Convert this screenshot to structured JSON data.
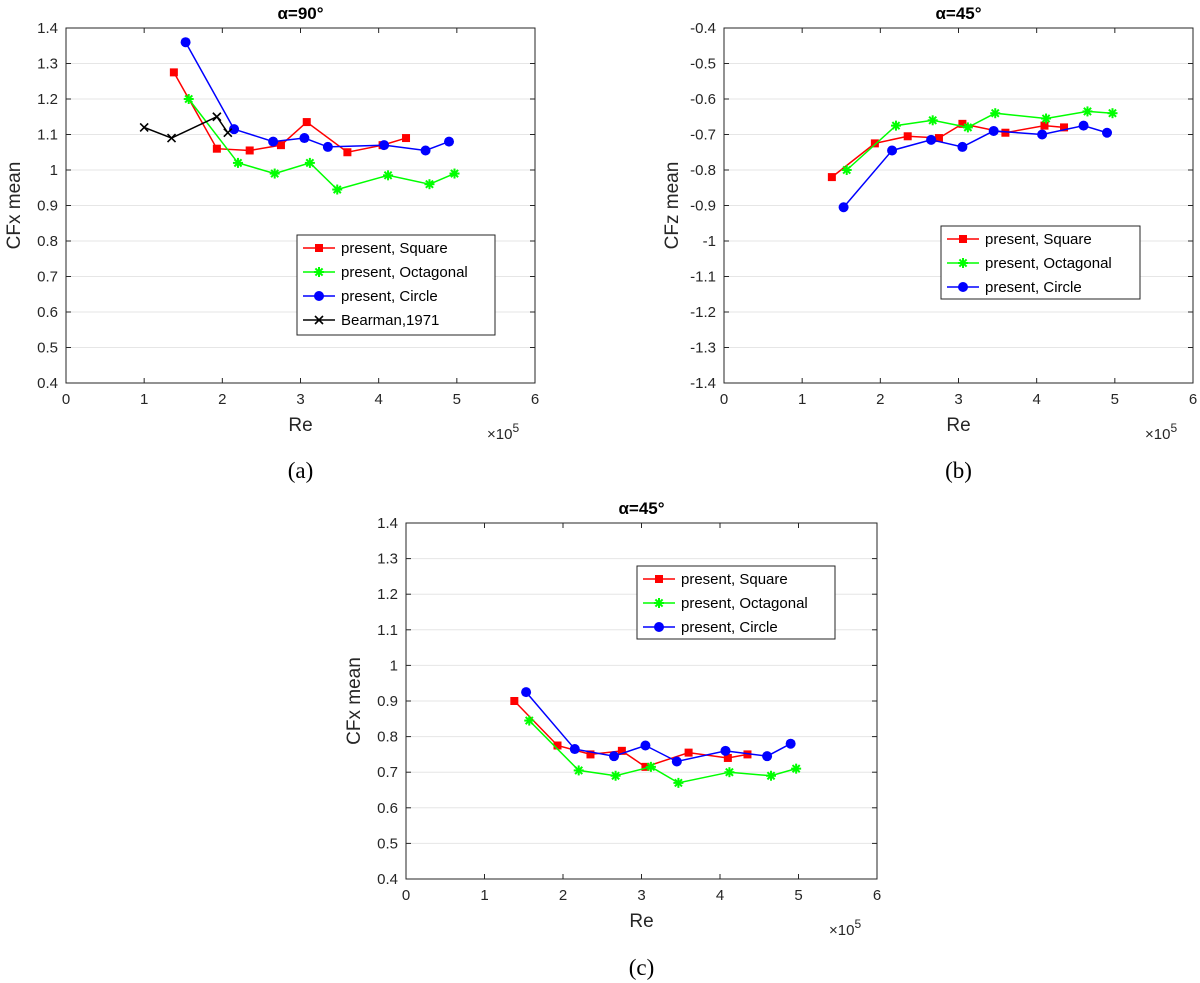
{
  "chart_data": [
    {
      "type": "line",
      "id": "a",
      "title": "α=90°",
      "xlabel": "Re",
      "ylabel": "CFx mean",
      "x_multiplier": "×10",
      "x_multiplier_exp": "5",
      "caption": "(a)",
      "xlim": [
        0,
        6
      ],
      "ylim": [
        0.4,
        1.4
      ],
      "xticks": [
        "0",
        "1",
        "2",
        "3",
        "4",
        "5",
        "6"
      ],
      "yticks": [
        "0.4",
        "0.5",
        "0.6",
        "0.7",
        "0.8",
        "0.9",
        "1",
        "1.1",
        "1.2",
        "1.3",
        "1.4"
      ],
      "grid": "horizontal",
      "legend_position": "lower-right",
      "series": [
        {
          "name": "present, Square",
          "color": "#ff0000",
          "marker": "square",
          "x": [
            1.38,
            1.93,
            2.35,
            2.75,
            3.08,
            3.6,
            4.05,
            4.35
          ],
          "y": [
            1.275,
            1.06,
            1.055,
            1.07,
            1.135,
            1.05,
            1.07,
            1.09
          ]
        },
        {
          "name": "present, Octagonal",
          "color": "#00ff00",
          "marker": "asterisk",
          "x": [
            1.57,
            2.2,
            2.67,
            3.12,
            3.47,
            4.12,
            4.65,
            4.97
          ],
          "y": [
            1.2,
            1.02,
            0.99,
            1.02,
            0.945,
            0.985,
            0.96,
            0.99
          ]
        },
        {
          "name": "present, Circle",
          "color": "#0000ff",
          "marker": "circle",
          "x": [
            1.53,
            2.15,
            2.65,
            3.05,
            3.35,
            4.07,
            4.6,
            4.9
          ],
          "y": [
            1.36,
            1.115,
            1.08,
            1.09,
            1.065,
            1.07,
            1.055,
            1.08
          ]
        },
        {
          "name": "Bearman,1971",
          "color": "#000000",
          "marker": "x",
          "x": [
            1.0,
            1.35,
            1.93,
            2.07
          ],
          "y": [
            1.12,
            1.09,
            1.15,
            1.105
          ]
        }
      ]
    },
    {
      "type": "line",
      "id": "b",
      "title": "α=45°",
      "xlabel": "Re",
      "ylabel": "CFz mean",
      "x_multiplier": "×10",
      "x_multiplier_exp": "5",
      "caption": "(b)",
      "xlim": [
        0,
        6
      ],
      "ylim": [
        -1.4,
        -0.4
      ],
      "xticks": [
        "0",
        "1",
        "2",
        "3",
        "4",
        "5",
        "6"
      ],
      "yticks": [
        "-1.4",
        "-1.3",
        "-1.2",
        "-1.1",
        "-1",
        "-0.9",
        "-0.8",
        "-0.7",
        "-0.6",
        "-0.5",
        "-0.4"
      ],
      "grid": "horizontal",
      "legend_position": "center-right",
      "series": [
        {
          "name": "present, Square",
          "color": "#ff0000",
          "marker": "square",
          "x": [
            1.38,
            1.93,
            2.35,
            2.75,
            3.05,
            3.6,
            4.1,
            4.35
          ],
          "y": [
            -0.82,
            -0.725,
            -0.705,
            -0.71,
            -0.67,
            -0.695,
            -0.675,
            -0.68
          ]
        },
        {
          "name": "present, Octagonal",
          "color": "#00ff00",
          "marker": "asterisk",
          "x": [
            1.57,
            2.2,
            2.67,
            3.12,
            3.47,
            4.12,
            4.65,
            4.97
          ],
          "y": [
            -0.8,
            -0.675,
            -0.66,
            -0.68,
            -0.64,
            -0.655,
            -0.635,
            -0.64
          ]
        },
        {
          "name": "present, Circle",
          "color": "#0000ff",
          "marker": "circle",
          "x": [
            1.53,
            2.15,
            2.65,
            3.05,
            3.45,
            4.07,
            4.6,
            4.9
          ],
          "y": [
            -0.905,
            -0.745,
            -0.715,
            -0.735,
            -0.69,
            -0.7,
            -0.675,
            -0.695
          ]
        }
      ]
    },
    {
      "type": "line",
      "id": "c",
      "title": "α=45°",
      "xlabel": "Re",
      "ylabel": "CFx mean",
      "x_multiplier": "×10",
      "x_multiplier_exp": "5",
      "caption": "(c)",
      "xlim": [
        0,
        6
      ],
      "ylim": [
        0.4,
        1.4
      ],
      "xticks": [
        "0",
        "1",
        "2",
        "3",
        "4",
        "5",
        "6"
      ],
      "yticks": [
        "0.4",
        "0.5",
        "0.6",
        "0.7",
        "0.8",
        "0.9",
        "1",
        "1.1",
        "1.2",
        "1.3",
        "1.4"
      ],
      "grid": "horizontal",
      "legend_position": "top-right",
      "series": [
        {
          "name": "present, Square",
          "color": "#ff0000",
          "marker": "square",
          "x": [
            1.38,
            1.93,
            2.35,
            2.75,
            3.05,
            3.6,
            4.1,
            4.35
          ],
          "y": [
            0.9,
            0.775,
            0.75,
            0.76,
            0.715,
            0.755,
            0.74,
            0.75
          ]
        },
        {
          "name": "present, Octagonal",
          "color": "#00ff00",
          "marker": "asterisk",
          "x": [
            1.57,
            2.2,
            2.67,
            3.12,
            3.47,
            4.12,
            4.65,
            4.97
          ],
          "y": [
            0.845,
            0.705,
            0.69,
            0.715,
            0.67,
            0.7,
            0.69,
            0.71
          ]
        },
        {
          "name": "present, Circle",
          "color": "#0000ff",
          "marker": "circle",
          "x": [
            1.53,
            2.15,
            2.65,
            3.05,
            3.45,
            4.07,
            4.6,
            4.9
          ],
          "y": [
            0.925,
            0.765,
            0.745,
            0.775,
            0.73,
            0.76,
            0.745,
            0.78
          ]
        }
      ]
    }
  ]
}
